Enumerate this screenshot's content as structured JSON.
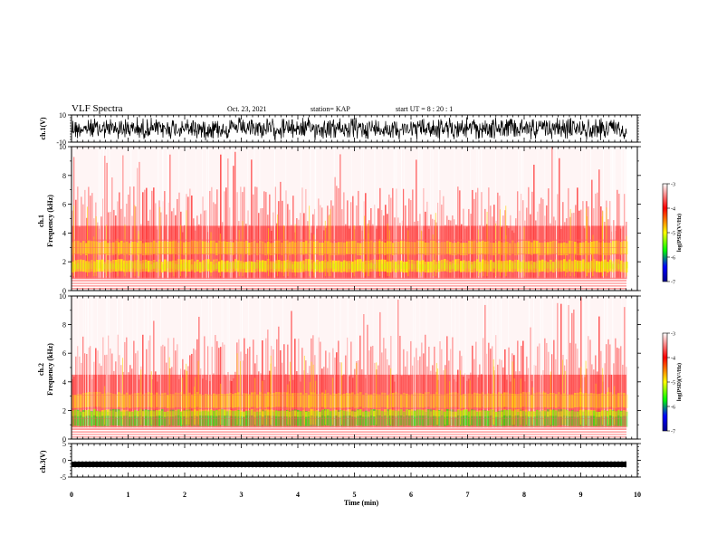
{
  "header": {
    "title": "VLF Spectra",
    "date": "Oct. 23, 2021",
    "station": "station= KAP",
    "start": "start UT =  8 : 20 : 1"
  },
  "colorbar": {
    "label": "log(PSD)(V²/Hz)",
    "ticks": [
      "-3",
      "-4",
      "-5",
      "-6",
      "-7"
    ],
    "colors": [
      "#ffffff",
      "#ff0000",
      "#ffff00",
      "#00ff00",
      "#0000ff",
      "#00008b"
    ]
  },
  "chart_data": [
    {
      "type": "line",
      "name": "waveform-ch1",
      "ylabel": "ch.1(V)",
      "ylim": [
        -10,
        10
      ],
      "yticks": [
        "10",
        "-10"
      ],
      "xlim": [
        0,
        10
      ]
    },
    {
      "type": "heatmap",
      "name": "spectrogram-ch1",
      "ylabel_line1": "ch.1",
      "ylabel_line2": "Frequency (kHz)",
      "ylim": [
        0,
        10
      ],
      "yticks": [
        "10",
        "8",
        "6",
        "4",
        "2",
        "0"
      ],
      "xlim": [
        0,
        10
      ],
      "colorbar_range": [
        -7,
        -3
      ]
    },
    {
      "type": "heatmap",
      "name": "spectrogram-ch2",
      "ylabel_line1": "ch.2",
      "ylabel_line2": "Frequency (kHz)",
      "ylim": [
        0,
        10
      ],
      "yticks": [
        "10",
        "8",
        "6",
        "4",
        "2",
        "0"
      ],
      "xlim": [
        0,
        10
      ],
      "colorbar_range": [
        -7,
        -3
      ]
    },
    {
      "type": "line",
      "name": "waveform-ch3",
      "ylabel": "ch.3(V)",
      "ylim": [
        -5,
        5
      ],
      "yticks": [
        "5",
        "0",
        "-5"
      ],
      "xlim": [
        0,
        10
      ],
      "xlabel": "Time  (min)",
      "xticks": [
        "0",
        "1",
        "2",
        "3",
        "4",
        "5",
        "6",
        "7",
        "8",
        "9",
        "10"
      ]
    }
  ]
}
